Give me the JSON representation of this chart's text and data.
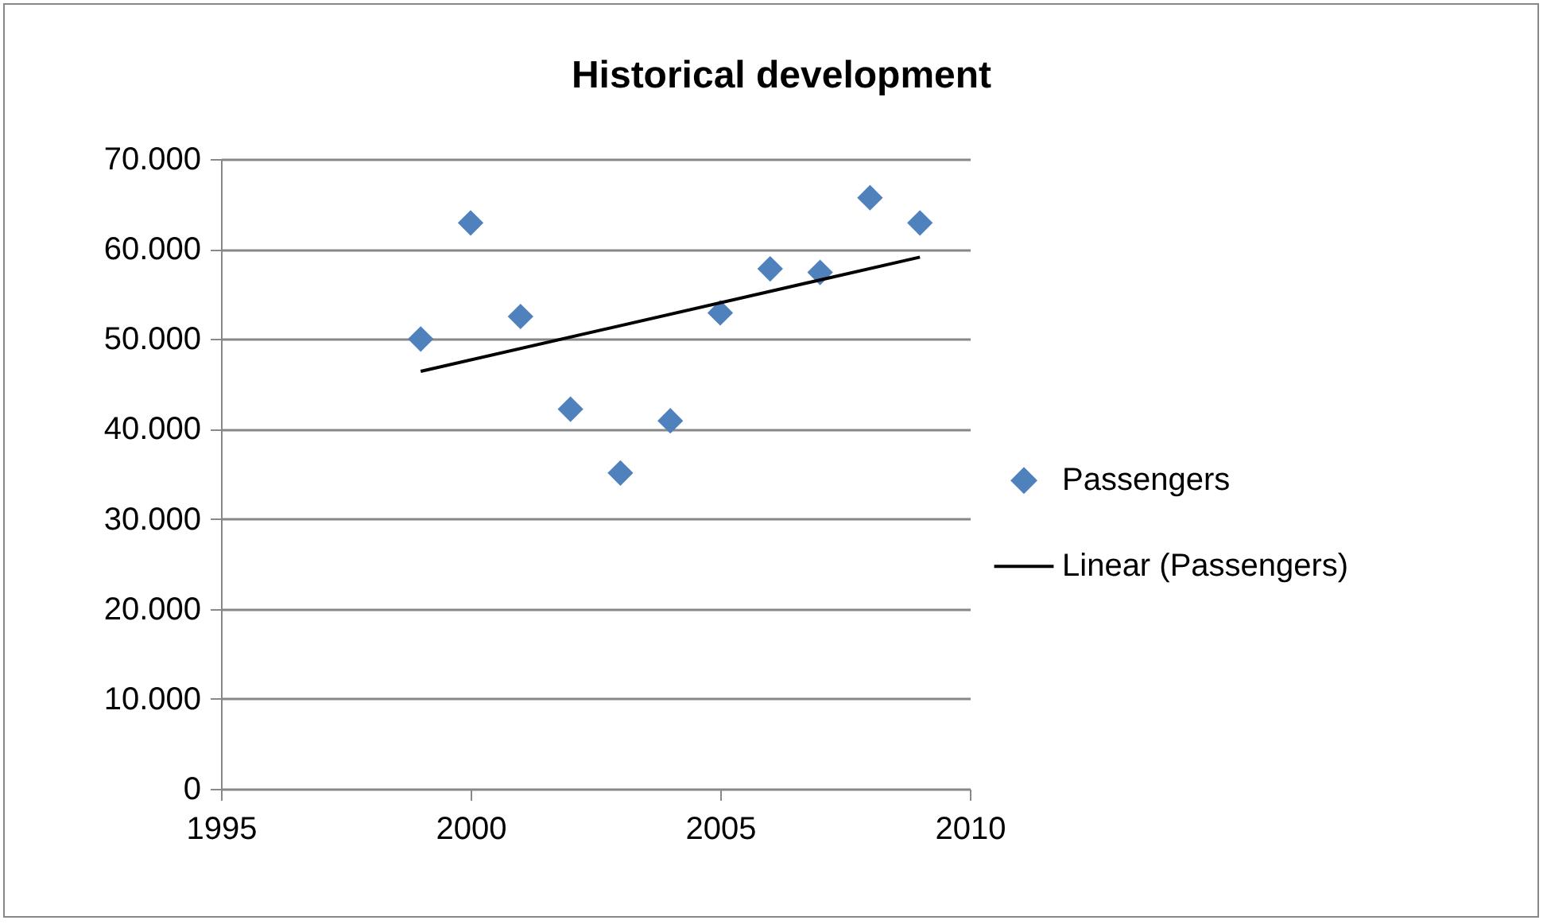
{
  "chart_data": {
    "type": "scatter",
    "title": "Historical development",
    "x": [
      1999,
      2000,
      2001,
      2002,
      2003,
      2004,
      2005,
      2006,
      2007,
      2008,
      2009
    ],
    "series": [
      {
        "name": "Passengers",
        "marker": "diamond",
        "color": "#4f81bd",
        "values": [
          50000,
          62900,
          52500,
          42200,
          35100,
          40900,
          52900,
          57800,
          57400,
          65700,
          62900
        ]
      },
      {
        "name": "Linear (Passengers)",
        "type": "line",
        "color": "#000000",
        "x": [
          1999,
          2009
        ],
        "values": [
          46400,
          59100
        ]
      }
    ],
    "xlim": [
      1995,
      2010
    ],
    "xticks": [
      1995,
      2000,
      2005,
      2010
    ],
    "ylim": [
      0,
      70000
    ],
    "yticks": [
      0,
      {
        "value": 10000,
        "label": "10.000"
      },
      {
        "value": 20000,
        "label": "20.000"
      },
      {
        "value": 30000,
        "label": "30.000"
      },
      {
        "value": 40000,
        "label": "40.000"
      },
      {
        "value": 50000,
        "label": "50.000"
      },
      {
        "value": 60000,
        "label": "60.000"
      },
      {
        "value": 70000,
        "label": "70.000"
      }
    ],
    "grid": "y",
    "legend": "right"
  }
}
